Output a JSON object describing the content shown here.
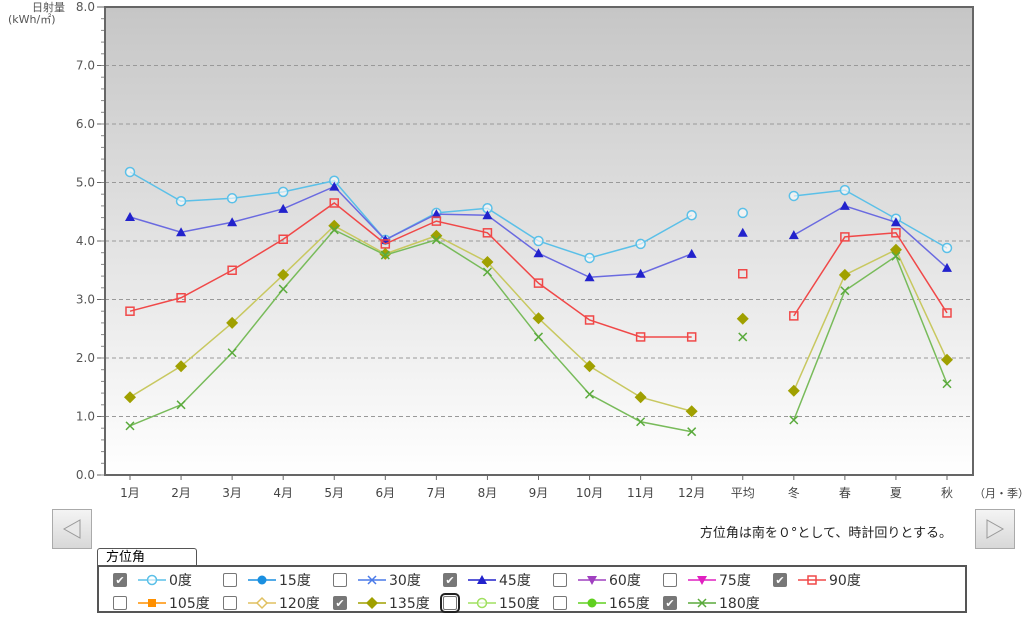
{
  "chart_data": {
    "type": "line",
    "ylabel": "日射量",
    "yunit": "(kWh/㎡)",
    "xlabel": "（月・季）",
    "ylim": [
      0,
      8
    ],
    "yticks": [
      "0.0",
      "1.0",
      "2.0",
      "3.0",
      "4.0",
      "5.0",
      "6.0",
      "7.0",
      "8.0"
    ],
    "grid": true,
    "categories": [
      "1月",
      "2月",
      "3月",
      "4月",
      "5月",
      "6月",
      "7月",
      "8月",
      "9月",
      "10月",
      "11月",
      "12月",
      "平均",
      "冬",
      "春",
      "夏",
      "秋"
    ],
    "series": [
      {
        "name": "0度",
        "color": "#5bc0e8",
        "marker": "circle-open",
        "values": [
          5.18,
          4.68,
          4.73,
          4.84,
          5.03,
          4.02,
          4.48,
          4.56,
          4.0,
          3.71,
          3.95,
          4.44,
          4.48,
          4.77,
          4.87,
          4.38,
          3.88
        ]
      },
      {
        "name": "45度",
        "color": "#2222cc",
        "line": "#6a6ae0",
        "marker": "triangle",
        "values": [
          4.41,
          4.15,
          4.32,
          4.55,
          4.93,
          4.02,
          4.46,
          4.44,
          3.79,
          3.38,
          3.44,
          3.78,
          4.14,
          4.1,
          4.6,
          4.32,
          3.54
        ]
      },
      {
        "name": "90度",
        "color": "#f04848",
        "marker": "square-open",
        "values": [
          2.8,
          3.03,
          3.5,
          4.03,
          4.65,
          3.95,
          4.34,
          4.14,
          3.28,
          2.65,
          2.36,
          2.36,
          3.44,
          2.72,
          4.07,
          4.14,
          2.77
        ]
      },
      {
        "name": "135度",
        "color": "#a0a000",
        "line": "#c8c860",
        "marker": "diamond",
        "values": [
          1.33,
          1.86,
          2.6,
          3.42,
          4.26,
          3.78,
          4.09,
          3.64,
          2.68,
          1.86,
          1.33,
          1.09,
          2.67,
          1.44,
          3.42,
          3.85,
          1.97
        ]
      },
      {
        "name": "180度",
        "color": "#5aaa3c",
        "line": "#78bb5a",
        "marker": "x",
        "values": [
          0.84,
          1.2,
          2.09,
          3.18,
          4.19,
          3.76,
          4.02,
          3.47,
          2.36,
          1.38,
          0.91,
          0.74,
          2.36,
          0.94,
          3.15,
          3.74,
          1.56
        ]
      }
    ]
  },
  "note": "方位角は南を０°として、時計回りとする。",
  "legend": {
    "title": "方位角",
    "items": [
      {
        "label": "0度",
        "checked": true,
        "color": "#5bc0e8",
        "marker": "circle-open"
      },
      {
        "label": "15度",
        "checked": false,
        "color": "#1a8fe0",
        "marker": "circle"
      },
      {
        "label": "30度",
        "checked": false,
        "color": "#4a7ae8",
        "marker": "x"
      },
      {
        "label": "45度",
        "checked": true,
        "color": "#2222cc",
        "marker": "triangle"
      },
      {
        "label": "60度",
        "checked": false,
        "color": "#a040c0",
        "marker": "triangle-down"
      },
      {
        "label": "75度",
        "checked": false,
        "color": "#e020c0",
        "marker": "triangle-down"
      },
      {
        "label": "90度",
        "checked": true,
        "color": "#f04848",
        "marker": "square-open"
      },
      {
        "label": "105度",
        "checked": false,
        "color": "#ff9000",
        "marker": "square"
      },
      {
        "label": "120度",
        "checked": false,
        "color": "#e0c060",
        "marker": "diamond-open"
      },
      {
        "label": "135度",
        "checked": true,
        "color": "#a0a000",
        "marker": "diamond"
      },
      {
        "label": "150度",
        "checked": false,
        "color": "#a0e060",
        "marker": "circle-open",
        "focused": true
      },
      {
        "label": "165度",
        "checked": false,
        "color": "#60d020",
        "marker": "circle"
      },
      {
        "label": "180度",
        "checked": true,
        "color": "#5aaa3c",
        "marker": "x"
      }
    ]
  }
}
